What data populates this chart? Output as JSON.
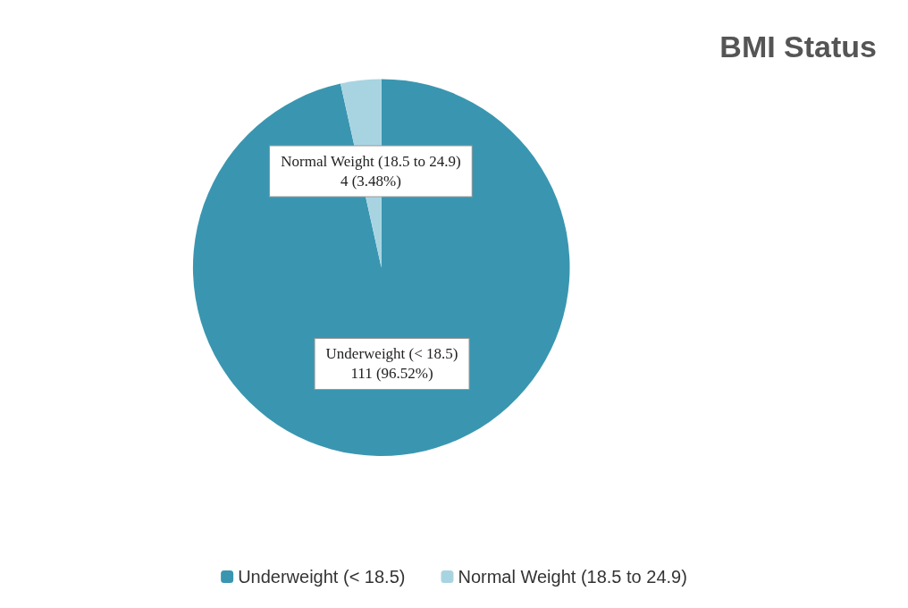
{
  "chart_data": {
    "type": "pie",
    "title": "BMI Status",
    "categories": [
      "Underweight (< 18.5)",
      "Normal Weight (18.5 to 24.9)"
    ],
    "values": [
      111,
      4
    ],
    "value_labels": [
      "111 (96.52%)",
      "4 (3.48%)"
    ],
    "colors": [
      "#3a96b0",
      "#a8d4e2"
    ],
    "legend": "bottom"
  }
}
